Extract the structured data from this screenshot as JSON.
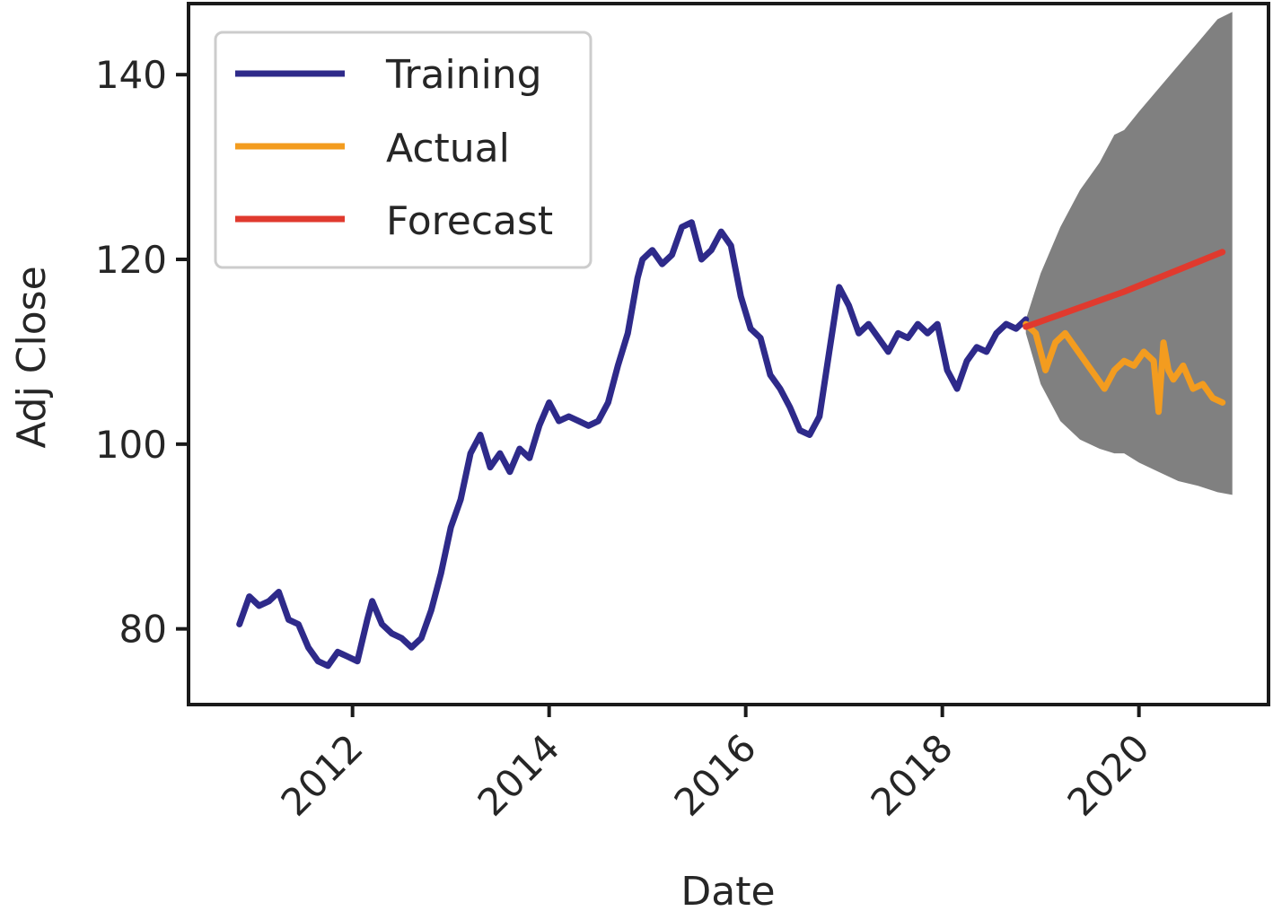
{
  "chart_data": {
    "type": "line",
    "title": "",
    "xlabel": "Date",
    "ylabel": "Adj Close",
    "x_tick_labels": [
      "2012",
      "2014",
      "2016",
      "2018",
      "2020"
    ],
    "y_tick_labels": [
      "80",
      "100",
      "120",
      "140"
    ],
    "y_ticks": [
      80,
      100,
      120,
      140
    ],
    "x_ticks": [
      2012,
      2014,
      2016,
      2018,
      2020
    ],
    "xlim": [
      2010.35,
      2021.3
    ],
    "ylim": [
      72,
      147.5
    ],
    "grid": false,
    "legend_position": "top-left",
    "series": [
      {
        "name": "Training",
        "color": "#2e2a8a",
        "x": [
          2010.85,
          2010.95,
          2011.05,
          2011.15,
          2011.25,
          2011.35,
          2011.45,
          2011.55,
          2011.65,
          2011.75,
          2011.85,
          2011.95,
          2012.05,
          2012.15,
          2012.2,
          2012.3,
          2012.4,
          2012.5,
          2012.6,
          2012.7,
          2012.8,
          2012.9,
          2013.0,
          2013.1,
          2013.2,
          2013.3,
          2013.4,
          2013.5,
          2013.6,
          2013.7,
          2013.8,
          2013.9,
          2014.0,
          2014.1,
          2014.2,
          2014.3,
          2014.4,
          2014.5,
          2014.6,
          2014.7,
          2014.8,
          2014.9,
          2014.95,
          2015.05,
          2015.15,
          2015.25,
          2015.35,
          2015.45,
          2015.55,
          2015.65,
          2015.75,
          2015.85,
          2015.95,
          2016.05,
          2016.15,
          2016.25,
          2016.35,
          2016.45,
          2016.55,
          2016.65,
          2016.75,
          2016.85,
          2016.95,
          2017.05,
          2017.15,
          2017.25,
          2017.35,
          2017.45,
          2017.55,
          2017.65,
          2017.75,
          2017.85,
          2017.95,
          2018.05,
          2018.15,
          2018.25,
          2018.35,
          2018.45,
          2018.55,
          2018.65,
          2018.75,
          2018.85
        ],
        "values": [
          80.5,
          83.5,
          82.5,
          83.0,
          84.0,
          81.0,
          80.5,
          78.0,
          76.5,
          76.0,
          77.5,
          77.0,
          76.5,
          81.0,
          83.0,
          80.5,
          79.5,
          79.0,
          78.0,
          79.0,
          82.0,
          86.0,
          91.0,
          94.0,
          99.0,
          101.0,
          97.5,
          99.0,
          97.0,
          99.5,
          98.5,
          102.0,
          104.5,
          102.5,
          103.0,
          102.5,
          102.0,
          102.5,
          104.5,
          108.5,
          112.0,
          118.0,
          120.0,
          121.0,
          119.5,
          120.5,
          123.5,
          124.0,
          120.0,
          121.0,
          123.0,
          121.5,
          116.0,
          112.5,
          111.5,
          107.5,
          106.0,
          104.0,
          101.5,
          101.0,
          103.0,
          110.0,
          117.0,
          115.0,
          112.0,
          113.0,
          111.5,
          110.0,
          112.0,
          111.5,
          113.0,
          112.0,
          113.0,
          108.0,
          106.0,
          109.0,
          110.5,
          110.0,
          112.0,
          113.0,
          112.5,
          113.5
        ]
      },
      {
        "name": "Actual",
        "color": "#f39c1f",
        "x": [
          2018.85,
          2018.95,
          2019.05,
          2019.15,
          2019.25,
          2019.35,
          2019.45,
          2019.55,
          2019.65,
          2019.75,
          2019.85,
          2019.95,
          2020.05,
          2020.15,
          2020.2,
          2020.25,
          2020.3,
          2020.35,
          2020.45,
          2020.55,
          2020.65,
          2020.75,
          2020.85
        ],
        "values": [
          113.0,
          112.0,
          108.0,
          111.0,
          112.0,
          110.5,
          109.0,
          107.5,
          106.0,
          108.0,
          109.0,
          108.5,
          110.0,
          109.0,
          103.5,
          111.0,
          108.0,
          107.0,
          108.5,
          106.0,
          106.5,
          105.0,
          104.5
        ]
      },
      {
        "name": "Forecast",
        "color": "#e03a2e",
        "x": [
          2018.85,
          2019.85,
          2020.85
        ],
        "values": [
          112.7,
          116.5,
          120.8
        ]
      }
    ],
    "confidence_band": {
      "color": "#808080",
      "x": [
        2018.85,
        2019.0,
        2019.2,
        2019.4,
        2019.6,
        2019.75,
        2019.85,
        2020.0,
        2020.2,
        2020.4,
        2020.6,
        2020.8,
        2020.95
      ],
      "upper": [
        113.5,
        118.5,
        123.5,
        127.5,
        130.5,
        133.5,
        134.0,
        136.0,
        138.5,
        141.0,
        143.5,
        146.0,
        146.8
      ],
      "lower": [
        112.0,
        106.5,
        102.5,
        100.5,
        99.5,
        99.0,
        99.0,
        98.0,
        97.0,
        96.0,
        95.5,
        94.8,
        94.5
      ]
    }
  }
}
